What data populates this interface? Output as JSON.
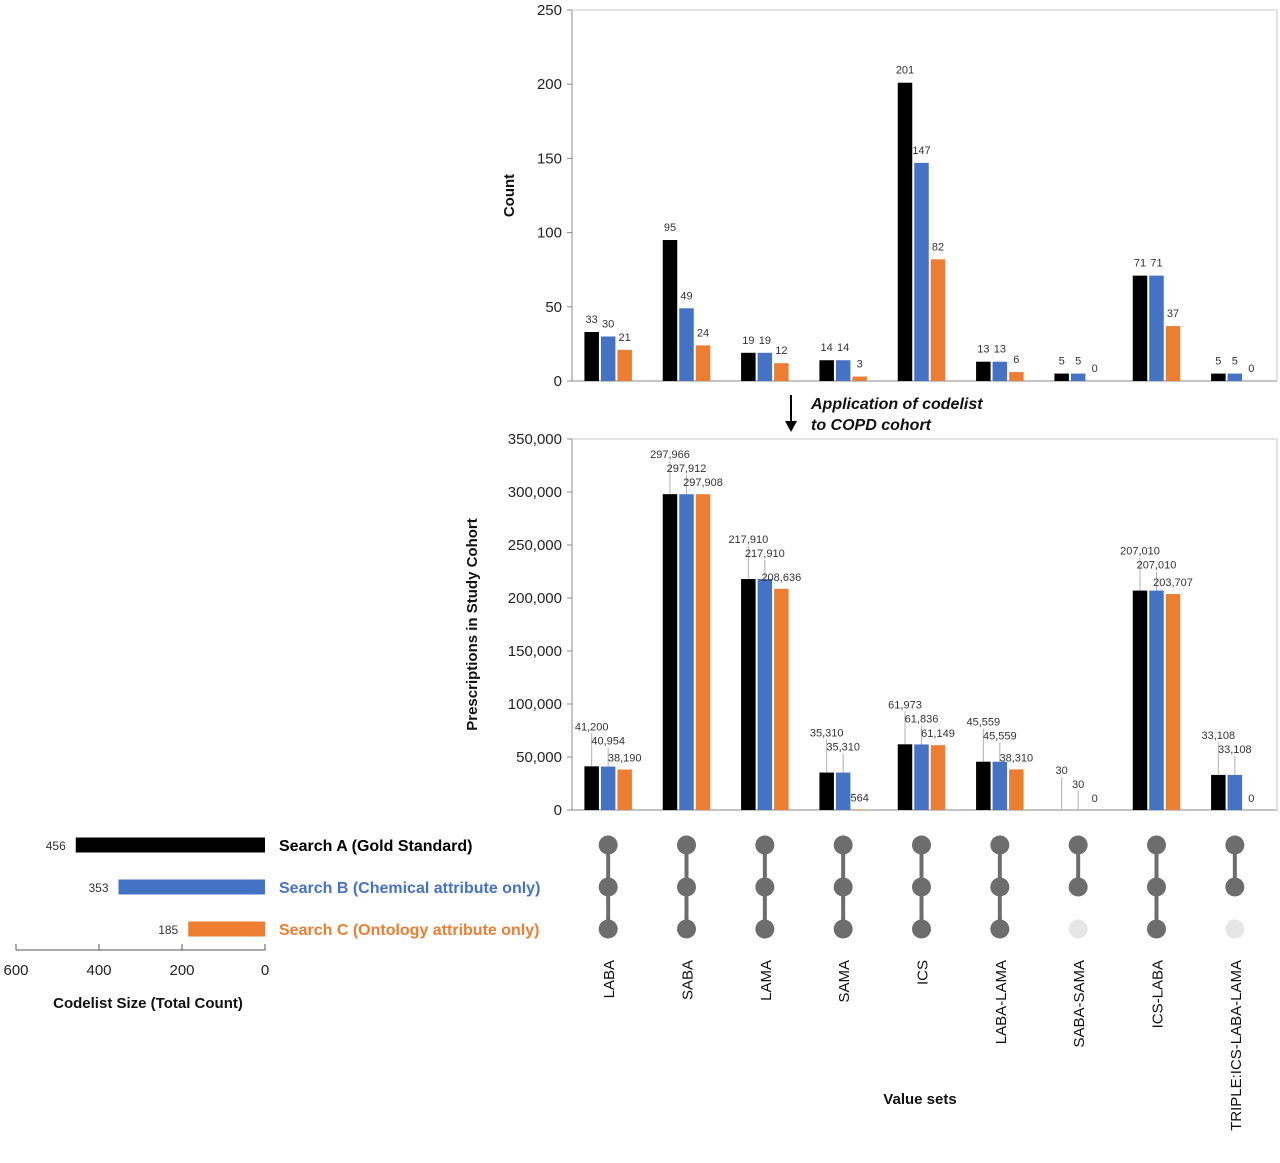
{
  "colors": {
    "a": "#000000",
    "b": "#4472c4",
    "c": "#ed7d31",
    "dot": "#6d6d6d",
    "dot_empty": "#e6e6e6"
  },
  "annotation": {
    "line1": "Application of codelist",
    "line2": "to COPD cohort"
  },
  "chart_data": [
    {
      "type": "bar",
      "panel": "top",
      "ylabel": "Count",
      "ylim": [
        0,
        250
      ],
      "yticks": [
        0,
        50,
        100,
        150,
        200,
        250
      ],
      "categories": [
        "LABA",
        "SABA",
        "LAMA",
        "SAMA",
        "ICS",
        "LABA-LAMA",
        "SABA-SAMA",
        "ICS-LABA",
        "TRIPLE:ICS-LABA-LAMA"
      ],
      "series": [
        {
          "key": "a",
          "values": [
            33,
            95,
            19,
            14,
            201,
            13,
            5,
            71,
            5
          ]
        },
        {
          "key": "b",
          "values": [
            30,
            49,
            19,
            14,
            147,
            13,
            5,
            71,
            5
          ]
        },
        {
          "key": "c",
          "values": [
            21,
            24,
            12,
            3,
            82,
            6,
            0,
            37,
            0
          ]
        }
      ],
      "labels": [
        [
          "33",
          "30",
          "21"
        ],
        [
          "95",
          "49",
          "24"
        ],
        [
          "19",
          "19",
          "12"
        ],
        [
          "14",
          "14",
          "3"
        ],
        [
          "201",
          "147",
          "82"
        ],
        [
          "13",
          "13",
          "6"
        ],
        [
          "5",
          "5",
          "0"
        ],
        [
          "71",
          "71",
          "37"
        ],
        [
          "5",
          "5",
          "0"
        ]
      ]
    },
    {
      "type": "bar",
      "panel": "bottom",
      "ylabel": "Prescriptions in Study Cohort",
      "xlabel": "Value sets",
      "ylim": [
        0,
        350000
      ],
      "yticks": [
        0,
        50000,
        100000,
        150000,
        200000,
        250000,
        300000,
        350000
      ],
      "ytick_labels": [
        "0",
        "50,000",
        "100,000",
        "150,000",
        "200,000",
        "250,000",
        "300,000",
        "350,000"
      ],
      "categories": [
        "LABA",
        "SABA",
        "LAMA",
        "SAMA",
        "ICS",
        "LABA-LAMA",
        "SABA-SAMA",
        "ICS-LABA",
        "TRIPLE:ICS-LABA-LAMA"
      ],
      "series": [
        {
          "key": "a",
          "values": [
            41200,
            297966,
            217910,
            35310,
            61973,
            45559,
            30,
            207010,
            33108
          ]
        },
        {
          "key": "b",
          "values": [
            40954,
            297912,
            217910,
            35310,
            61836,
            45559,
            30,
            207010,
            33108
          ]
        },
        {
          "key": "c",
          "values": [
            38190,
            297908,
            208636,
            564,
            61149,
            38310,
            0,
            203707,
            0
          ]
        }
      ],
      "labels": [
        [
          "41,200",
          "40,954",
          "38,190"
        ],
        [
          "297,966",
          "297,912",
          "297,908"
        ],
        [
          "217,910",
          "217,910",
          "208,636"
        ],
        [
          "35,310",
          "35,310",
          "564"
        ],
        [
          "61,973",
          "61,836",
          "61,149"
        ],
        [
          "45,559",
          "45,559",
          "38,310"
        ],
        [
          "30",
          "30",
          "0"
        ],
        [
          "207,010",
          "207,010",
          "203,707"
        ],
        [
          "33,108",
          "33,108",
          "0"
        ]
      ]
    },
    {
      "type": "bar",
      "panel": "codelist-size",
      "orientation": "horizontal",
      "xlabel": "Codelist Size (Total Count)",
      "xlim": [
        0,
        600
      ],
      "xticks": [
        600,
        400,
        200,
        0
      ],
      "series": [
        {
          "key": "a",
          "name": "Search A (Gold Standard)",
          "value": 456
        },
        {
          "key": "b",
          "name": "Search B (Chemical attribute only)",
          "value": 353
        },
        {
          "key": "c",
          "name": "Search C (Ontology attribute only)",
          "value": 185
        }
      ]
    },
    {
      "type": "table",
      "panel": "matrix",
      "note": "membership of each value set in Search A / B / C",
      "membership": [
        [
          true,
          true,
          true
        ],
        [
          true,
          true,
          true
        ],
        [
          true,
          true,
          true
        ],
        [
          true,
          true,
          true
        ],
        [
          true,
          true,
          true
        ],
        [
          true,
          true,
          true
        ],
        [
          true,
          true,
          false
        ],
        [
          true,
          true,
          true
        ],
        [
          true,
          true,
          false
        ]
      ]
    }
  ]
}
